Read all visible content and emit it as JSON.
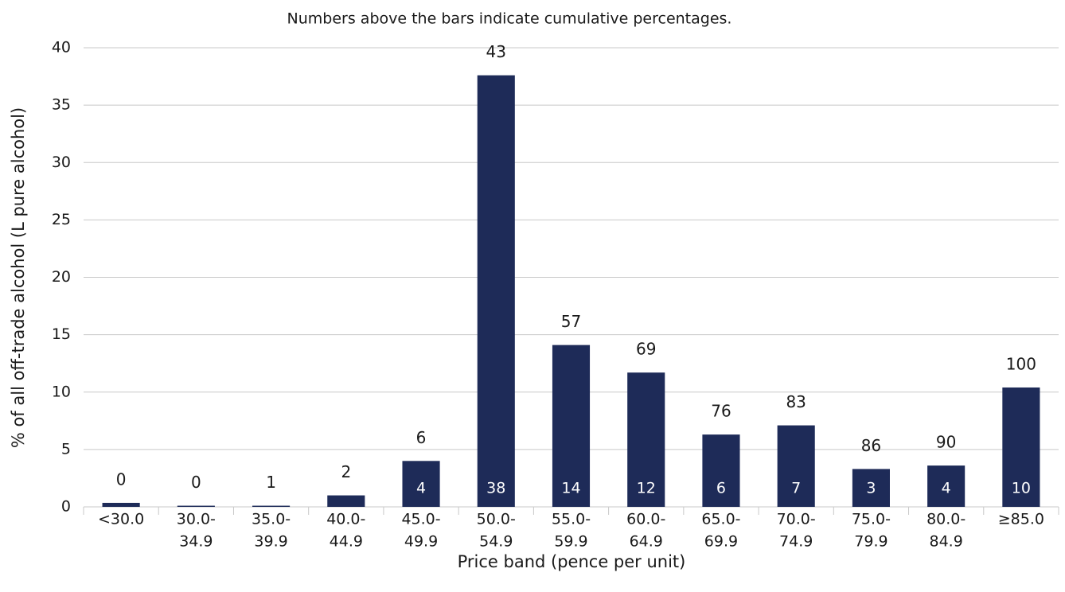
{
  "chart_data": {
    "type": "bar",
    "subtitle": "Numbers above the bars indicate cumulative percentages.",
    "x_label": "Price band (pence per unit)",
    "y_label": "% of all off-trade alcohol (L pure alcohol)",
    "categories": [
      [
        "<30.0"
      ],
      [
        "30.0-",
        "34.9"
      ],
      [
        "35.0-",
        "39.9"
      ],
      [
        "40.0-",
        "44.9"
      ],
      [
        "45.0-",
        "49.9"
      ],
      [
        "50.0-",
        "54.9"
      ],
      [
        "55.0-",
        "59.9"
      ],
      [
        "60.0-",
        "64.9"
      ],
      [
        "65.0-",
        "69.9"
      ],
      [
        "70.0-",
        "74.9"
      ],
      [
        "75.0-",
        "79.9"
      ],
      [
        "80.0-",
        "84.9"
      ],
      [
        "≥85.0"
      ]
    ],
    "values": [
      0.35,
      0.1,
      0.1,
      1.0,
      4.0,
      37.6,
      14.1,
      11.7,
      6.3,
      7.1,
      3.3,
      3.6,
      10.4
    ],
    "value_labels": [
      null,
      null,
      null,
      null,
      "4",
      "38",
      "14",
      "12",
      "6",
      "7",
      "3",
      "4",
      "10"
    ],
    "cumulative_labels": [
      0,
      0,
      1,
      2,
      6,
      43,
      57,
      69,
      76,
      83,
      86,
      90,
      100
    ],
    "color": "#1e2b58",
    "ylim": [
      0,
      40
    ],
    "yticks": [
      0,
      5,
      10,
      15,
      20,
      25,
      30,
      35,
      40
    ],
    "grid": true
  }
}
